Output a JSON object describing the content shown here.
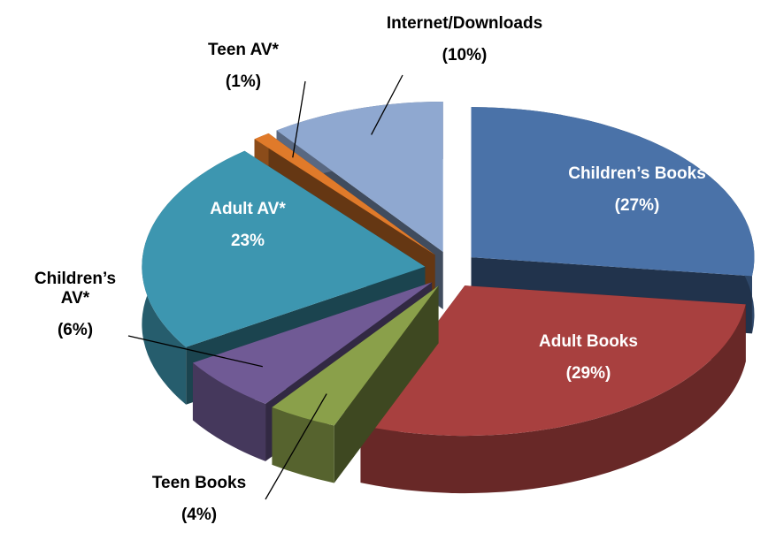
{
  "chart_data": {
    "type": "pie",
    "categories": [
      "Children’s Books",
      "Adult Books",
      "Teen Books",
      "Children’s AV*",
      "Adult AV*",
      "Teen AV*",
      "Internet/Downloads"
    ],
    "values": [
      27,
      29,
      4,
      6,
      23,
      1,
      10
    ],
    "value_labels": [
      "(27%)",
      "(29%)",
      "(4%)",
      "(6%)",
      "23%",
      "(1%)",
      "(10%)"
    ],
    "colors": [
      "#4a72a8",
      "#a8403f",
      "#8aa04a",
      "#705a95",
      "#3d96b0",
      "#e07a2a",
      "#8fa8d0"
    ]
  }
}
